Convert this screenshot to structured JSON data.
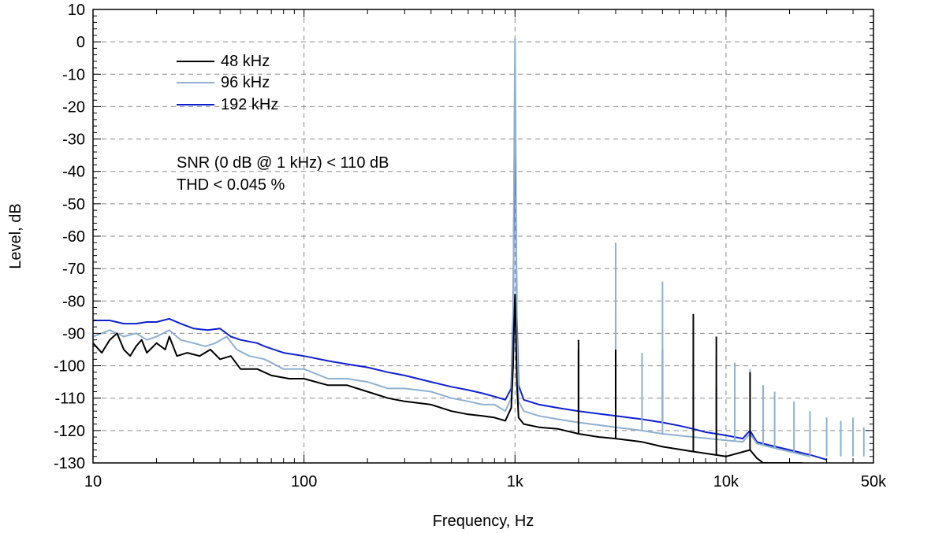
{
  "chart_data": {
    "type": "line",
    "xlabel": "Frequency, Hz",
    "ylabel": "Level, dB",
    "xscale": "log",
    "xlim": [
      10,
      50000
    ],
    "ylim": [
      -130,
      10
    ],
    "grid": true,
    "legend_position": "top-left",
    "x_ticks": [
      {
        "value": 10,
        "label": "10"
      },
      {
        "value": 100,
        "label": "100"
      },
      {
        "value": 1000,
        "label": "1k"
      },
      {
        "value": 10000,
        "label": "10k"
      },
      {
        "value": 50000,
        "label": "50k"
      }
    ],
    "y_ticks": [
      10,
      0,
      -10,
      -20,
      -30,
      -40,
      -50,
      -60,
      -70,
      -80,
      -90,
      -100,
      -110,
      -120,
      -130
    ],
    "annotations": [
      "SNR (0 dB @ 1 kHz) < 110 dB",
      "THD < 0.045 %"
    ],
    "series": [
      {
        "name": "48 kHz",
        "color": "#000000",
        "x": [
          10,
          11,
          12,
          13,
          14,
          15,
          16,
          17,
          18,
          20,
          22,
          23,
          25,
          28,
          32,
          36,
          40,
          45,
          50,
          60,
          70,
          85,
          100,
          130,
          160,
          200,
          250,
          300,
          400,
          500,
          600,
          700,
          800,
          900,
          960,
          980,
          990,
          1000,
          1010,
          1020,
          1040,
          1100,
          1300,
          1600,
          2000,
          2500,
          3000,
          4000,
          5000,
          7000,
          10000,
          13000,
          14000,
          15000,
          17000,
          20000,
          23000
        ],
        "values": [
          -93,
          -96,
          -92,
          -90,
          -95,
          -97,
          -94,
          -92,
          -96,
          -93,
          -95,
          -91,
          -97,
          -96,
          -97,
          -95,
          -98,
          -97,
          -101,
          -101,
          -103,
          -104,
          -104,
          -106,
          -106,
          -108,
          -110,
          -111,
          -112,
          -114,
          -115,
          -115.5,
          -116,
          -117,
          -113,
          -100,
          -87,
          -78,
          -90,
          -105,
          -116,
          -118,
          -119,
          -119.5,
          -121,
          -122,
          -122.5,
          -123.5,
          -125,
          -126.5,
          -128,
          -126,
          -128.5,
          -130,
          -130,
          -130,
          -130
        ],
        "peaks": [
          {
            "x": 2000,
            "y": -92
          },
          {
            "x": 3000,
            "y": -95
          },
          {
            "x": 7000,
            "y": -84
          },
          {
            "x": 9000,
            "y": -91
          },
          {
            "x": 13000,
            "y": -102
          }
        ]
      },
      {
        "name": "96 kHz",
        "color": "#8fb0d1",
        "x": [
          10,
          11,
          12,
          14,
          16,
          18,
          20,
          23,
          26,
          30,
          34,
          38,
          43,
          48,
          55,
          65,
          80,
          100,
          130,
          160,
          200,
          250,
          300,
          400,
          500,
          600,
          700,
          800,
          900,
          960,
          980,
          990,
          1000,
          1010,
          1020,
          1040,
          1100,
          1300,
          1600,
          2000,
          3000,
          4000,
          5000,
          7000,
          10000,
          12000,
          13000,
          14000,
          16000,
          20000,
          25000
        ],
        "values": [
          -91,
          -90,
          -89,
          -91,
          -90,
          -92,
          -91,
          -89,
          -92,
          -93,
          -94,
          -93,
          -91,
          -95,
          -97,
          -98,
          -101,
          -101,
          -104,
          -104,
          -105,
          -107,
          -107,
          -108,
          -110,
          -111,
          -112,
          -112,
          -114,
          -110,
          -90,
          -40,
          1,
          -40,
          -90,
          -111,
          -114,
          -115.5,
          -116.5,
          -117.5,
          -119,
          -120,
          -121,
          -122,
          -123,
          -123.5,
          -121,
          -124,
          -125,
          -126.5,
          -128
        ],
        "peaks": [
          {
            "x": 3000,
            "y": -62
          },
          {
            "x": 4000,
            "y": -96
          },
          {
            "x": 5000,
            "y": -74
          },
          {
            "x": 7000,
            "y": -96
          },
          {
            "x": 9000,
            "y": -97
          },
          {
            "x": 11000,
            "y": -99
          },
          {
            "x": 13000,
            "y": -101
          },
          {
            "x": 15000,
            "y": -106
          },
          {
            "x": 17000,
            "y": -108
          },
          {
            "x": 21000,
            "y": -111
          },
          {
            "x": 25000,
            "y": -114
          },
          {
            "x": 30000,
            "y": -116
          },
          {
            "x": 35000,
            "y": -117
          },
          {
            "x": 40000,
            "y": -116
          },
          {
            "x": 45000,
            "y": -119
          }
        ]
      },
      {
        "name": "192 kHz",
        "color": "#1020d0",
        "x": [
          10,
          12,
          14,
          16,
          18,
          20,
          23,
          26,
          30,
          35,
          40,
          45,
          50,
          60,
          65,
          80,
          100,
          130,
          160,
          200,
          250,
          300,
          400,
          500,
          600,
          700,
          800,
          900,
          960,
          980,
          990,
          1000,
          1010,
          1020,
          1040,
          1100,
          1300,
          1600,
          2000,
          3000,
          4000,
          5000,
          6000,
          7000,
          8000,
          10000,
          12000,
          13000,
          14000,
          16000,
          20000,
          25000,
          30000
        ],
        "values": [
          -86,
          -86,
          -87,
          -87,
          -86.5,
          -86.5,
          -85.5,
          -87,
          -88.5,
          -89,
          -88.5,
          -91,
          -92,
          -93,
          -94,
          -96,
          -97,
          -98.5,
          -99.5,
          -100.5,
          -102,
          -103,
          -105,
          -106.5,
          -107.5,
          -108.5,
          -109.5,
          -110.5,
          -107,
          -85,
          -50,
          -8,
          -50,
          -85,
          -106,
          -110.5,
          -112,
          -113,
          -114,
          -115.5,
          -116.5,
          -117.5,
          -118.5,
          -119.5,
          -120.5,
          -121.5,
          -122.5,
          -120,
          -123.5,
          -124.5,
          -126,
          -127.5,
          -129
        ],
        "peaks": [
          {
            "x": 2000,
            "y": -95
          },
          {
            "x": 3000,
            "y": -83
          },
          {
            "x": 5000,
            "y": -95
          },
          {
            "x": 7000,
            "y": -99
          },
          {
            "x": 9000,
            "y": -107
          },
          {
            "x": 11000,
            "y": -112
          }
        ]
      }
    ]
  }
}
